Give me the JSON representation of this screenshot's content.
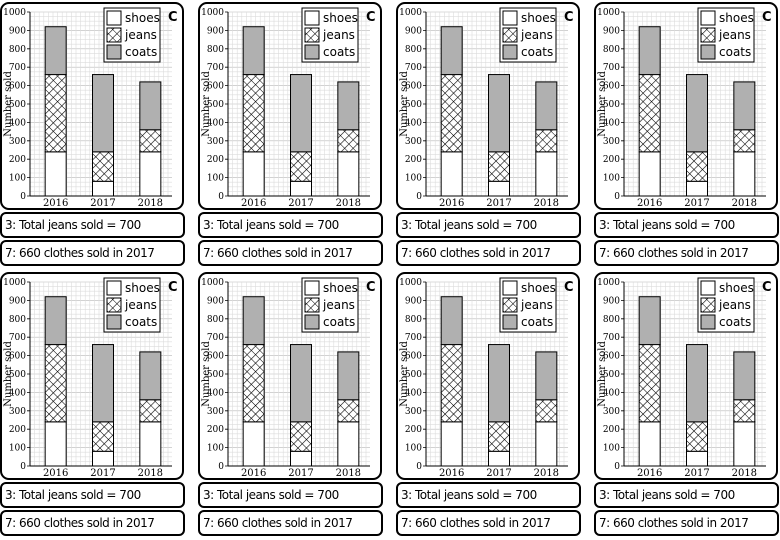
{
  "chart_data": {
    "type": "bar",
    "stacked": true,
    "categories": [
      "2016",
      "2017",
      "2018"
    ],
    "series": [
      {
        "name": "shoes",
        "values": [
          240,
          80,
          240
        ]
      },
      {
        "name": "jeans",
        "values": [
          420,
          160,
          120
        ]
      },
      {
        "name": "coats",
        "values": [
          260,
          420,
          260
        ]
      }
    ],
    "ylabel": "Number sold",
    "ylim": [
      0,
      1000
    ],
    "yticks": [
      "0",
      "100",
      "200",
      "300",
      "400",
      "500",
      "600",
      "700",
      "800",
      "900",
      "1000"
    ],
    "grid": true,
    "legend": "top-right",
    "corner_letter": "C",
    "colors": {
      "shoes": "#ffffff",
      "jeans": "hatched",
      "coats": "#b0b0b0"
    }
  },
  "cards": [
    {
      "caption1": "3: Total jeans sold = 700",
      "caption2": "7: 660 clothes sold in 2017"
    },
    {
      "caption1": "3: Total jeans sold = 700",
      "caption2": "7: 660 clothes sold in 2017"
    },
    {
      "caption1": "3: Total jeans sold = 700",
      "caption2": "7: 660 clothes sold in 2017"
    },
    {
      "caption1": "3: Total jeans sold = 700",
      "caption2": "7: 660 clothes sold in 2017"
    },
    {
      "caption1": "3: Total jeans sold = 700",
      "caption2": "7: 660 clothes sold in 2017"
    },
    {
      "caption1": "3: Total jeans sold = 700",
      "caption2": "7: 660 clothes sold in 2017"
    },
    {
      "caption1": "3: Total jeans sold = 700",
      "caption2": "7: 660 clothes sold in 2017"
    },
    {
      "caption1": "3: Total jeans sold = 700",
      "caption2": "7: 660 clothes sold in 2017"
    }
  ]
}
